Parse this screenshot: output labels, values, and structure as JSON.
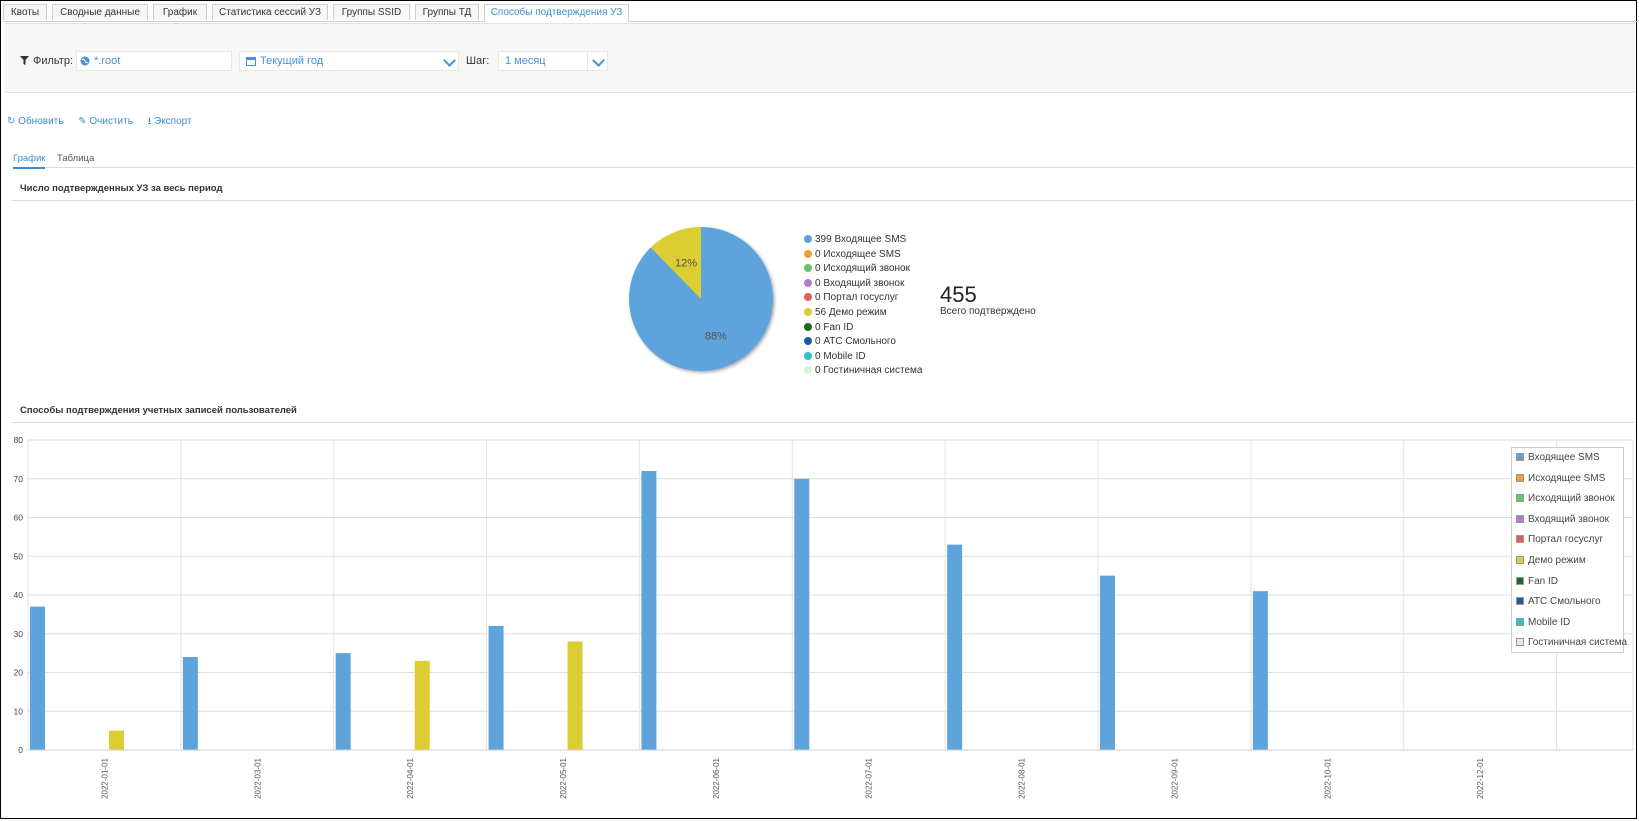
{
  "tabs": [
    "Квоты",
    "Сводные данные",
    "График",
    "Статистика сессий УЗ",
    "Группы SSID",
    "Группы ТД",
    "Способы подтверждения УЗ"
  ],
  "active_tab": "Способы подтверждения УЗ",
  "filter": {
    "label": "Фильтр:",
    "org_value": "*.root",
    "period_value": "Текущий год",
    "step_label": "Шаг:",
    "step_value": "1 месяц"
  },
  "actions": {
    "refresh": "Обновить",
    "clear": "Очистить",
    "export": "Экспорт"
  },
  "subtabs": [
    "График",
    "Таблица"
  ],
  "active_subtab": "График",
  "pie_section": {
    "title": "Число подтвержденных УЗ за весь период",
    "total_value": "455",
    "total_label": "Всего подтверждено",
    "legend": [
      {
        "count": "399",
        "label": "Входящее SMS",
        "color": "#5ea3dc"
      },
      {
        "count": "0",
        "label": "Исходящее SMS",
        "color": "#f39c3c"
      },
      {
        "count": "0",
        "label": "Исходящий звонок",
        "color": "#6cc06a"
      },
      {
        "count": "0",
        "label": "Входящий звонок",
        "color": "#b07cc6"
      },
      {
        "count": "0",
        "label": "Портал госуслуг",
        "color": "#e85a5a"
      },
      {
        "count": "56",
        "label": "Демо режим",
        "color": "#dccd33"
      },
      {
        "count": "0",
        "label": "Fan ID",
        "color": "#1e6b1e"
      },
      {
        "count": "0",
        "label": "АТС Смольного",
        "color": "#1f5aa0"
      },
      {
        "count": "0",
        "label": "Mobile ID",
        "color": "#27c3c7"
      },
      {
        "count": "0",
        "label": "Гостиничная система",
        "color": "#d8f3d8"
      }
    ]
  },
  "bar_section": {
    "title": "Способы подтверждения учетных записей пользователей",
    "legend": [
      {
        "label": "Входящее SMS",
        "color": "#5ea3dc"
      },
      {
        "label": "Исходящее SMS",
        "color": "#f39c3c"
      },
      {
        "label": "Исходящий звонок",
        "color": "#6cc06a"
      },
      {
        "label": "Входящий звонок",
        "color": "#b07cc6"
      },
      {
        "label": "Портал госуслуг",
        "color": "#e85a5a"
      },
      {
        "label": "Демо режим",
        "color": "#dccd33"
      },
      {
        "label": "Fan ID",
        "color": "#1e6b1e"
      },
      {
        "label": "АТС Смольного",
        "color": "#1f5aa0"
      },
      {
        "label": "Mobile ID",
        "color": "#27c3c7"
      },
      {
        "label": "Гостиничная система",
        "color": "#d8f3d8"
      }
    ]
  },
  "chart_data": [
    {
      "type": "pie",
      "title": "Число подтвержденных УЗ за весь период",
      "slices": [
        {
          "label": "Входящее SMS",
          "value": 399,
          "percent": "88%",
          "color": "#5ea3dc"
        },
        {
          "label": "Демо режим",
          "value": 56,
          "percent": "12%",
          "color": "#dccd33"
        }
      ]
    },
    {
      "type": "bar",
      "title": "Способы подтверждения учетных записей пользователей",
      "categories": [
        "2022-01-01",
        "2022-03-01",
        "2022-04-01",
        "2022-05-01",
        "2022-06-01",
        "2022-07-01",
        "2022-08-01",
        "2022-09-01",
        "2022-10-01",
        "2022-12-01"
      ],
      "ylim": [
        0,
        80
      ],
      "yticks": [
        0,
        10,
        20,
        30,
        40,
        50,
        60,
        70,
        80
      ],
      "grid": true,
      "legend_position": "top-right",
      "series": [
        {
          "name": "Входящее SMS",
          "color": "#5ea3dc",
          "values": [
            37,
            24,
            25,
            32,
            72,
            70,
            53,
            45,
            41,
            0
          ]
        },
        {
          "name": "Демо режим",
          "color": "#dccd33",
          "values": [
            5,
            0,
            23,
            28,
            0,
            0,
            0,
            0,
            0,
            0
          ]
        }
      ]
    }
  ]
}
